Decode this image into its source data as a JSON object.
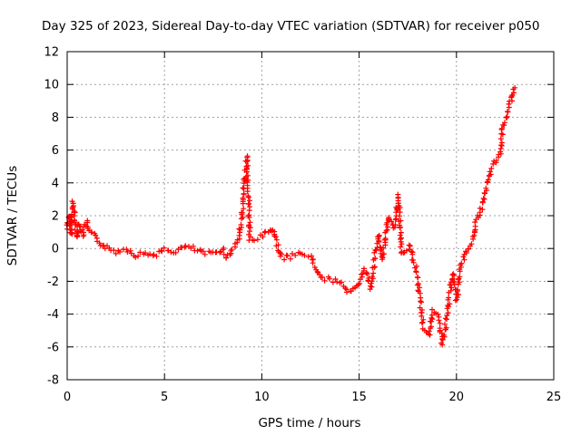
{
  "chart_data": {
    "type": "scatter",
    "title": "Day 325 of 2023, Sidereal Day-to-day VTEC variation (SDTVAR) for receiver p050",
    "xlabel": "GPS time / hours",
    "ylabel": "SDTVAR / TECUs",
    "xlim": [
      0,
      25
    ],
    "ylim": [
      -8,
      12
    ],
    "xticks": [
      0,
      5,
      10,
      15,
      20,
      25
    ],
    "yticks": [
      -8,
      -6,
      -4,
      -2,
      0,
      2,
      4,
      6,
      8,
      10,
      12
    ],
    "grid": true,
    "marker": "+",
    "color": "#ff0000",
    "series": [
      {
        "name": "SDTVAR",
        "trace": [
          [
            0.0,
            1.2
          ],
          [
            0.1,
            2.0
          ],
          [
            0.2,
            0.8
          ],
          [
            0.3,
            2.8
          ],
          [
            0.4,
            1.5
          ],
          [
            0.5,
            0.6
          ],
          [
            0.6,
            1.6
          ],
          [
            0.8,
            0.8
          ],
          [
            1.0,
            1.6
          ],
          [
            1.2,
            0.9
          ],
          [
            1.4,
            0.8
          ],
          [
            1.6,
            0.5
          ],
          [
            1.8,
            0.2
          ],
          [
            2.0,
            0.1
          ],
          [
            2.5,
            -0.2
          ],
          [
            3.0,
            0.0
          ],
          [
            3.5,
            -0.4
          ],
          [
            4.0,
            -0.3
          ],
          [
            4.5,
            -0.4
          ],
          [
            5.0,
            -0.1
          ],
          [
            5.5,
            -0.2
          ],
          [
            6.0,
            0.1
          ],
          [
            6.5,
            0.0
          ],
          [
            7.0,
            -0.3
          ],
          [
            7.5,
            -0.3
          ],
          [
            8.0,
            0.0
          ],
          [
            8.2,
            -0.6
          ],
          [
            8.5,
            0.0
          ],
          [
            8.8,
            0.5
          ],
          [
            9.0,
            2.0
          ],
          [
            9.1,
            4.0
          ],
          [
            9.25,
            5.6
          ],
          [
            9.4,
            0.5
          ],
          [
            9.8,
            0.6
          ],
          [
            10.2,
            1.0
          ],
          [
            10.6,
            1.2
          ],
          [
            11.0,
            -0.6
          ],
          [
            11.5,
            -0.5
          ],
          [
            12.0,
            -0.3
          ],
          [
            12.5,
            -0.5
          ],
          [
            13.0,
            -1.8
          ],
          [
            13.5,
            -1.9
          ],
          [
            14.0,
            -2.0
          ],
          [
            14.5,
            -2.7
          ],
          [
            15.0,
            -2.3
          ],
          [
            15.3,
            -1.2
          ],
          [
            15.6,
            -2.4
          ],
          [
            15.8,
            -0.5
          ],
          [
            16.0,
            0.8
          ],
          [
            16.2,
            -0.7
          ],
          [
            16.5,
            2.0
          ],
          [
            16.8,
            1.2
          ],
          [
            17.0,
            3.2
          ],
          [
            17.2,
            -0.3
          ],
          [
            17.6,
            0.2
          ],
          [
            18.0,
            -1.7
          ],
          [
            18.3,
            -4.8
          ],
          [
            18.6,
            -5.2
          ],
          [
            18.8,
            -3.8
          ],
          [
            19.0,
            -4.0
          ],
          [
            19.3,
            -5.8
          ],
          [
            19.6,
            -3.3
          ],
          [
            19.8,
            -1.5
          ],
          [
            20.0,
            -3.2
          ],
          [
            20.2,
            -1.2
          ],
          [
            20.5,
            -0.3
          ],
          [
            20.8,
            0.5
          ],
          [
            21.0,
            1.5
          ],
          [
            21.3,
            2.5
          ],
          [
            21.6,
            4.2
          ],
          [
            21.9,
            5.2
          ],
          [
            22.2,
            5.5
          ],
          [
            22.4,
            7.5
          ],
          [
            22.6,
            8.0
          ],
          [
            22.8,
            9.0
          ],
          [
            23.0,
            9.8
          ]
        ]
      }
    ]
  }
}
